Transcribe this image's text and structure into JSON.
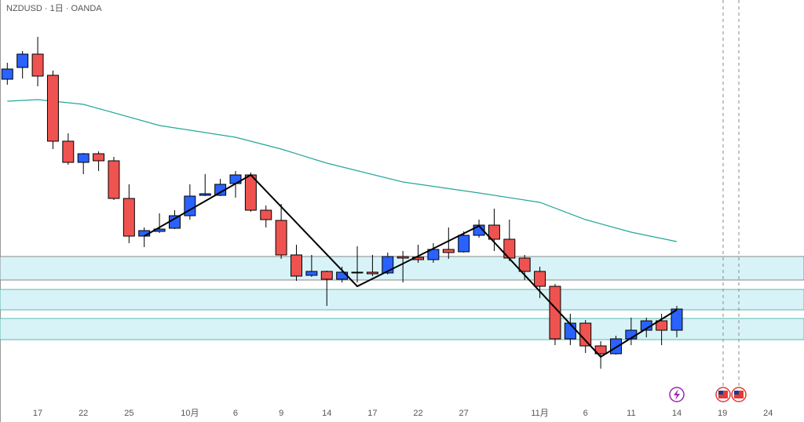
{
  "chart_data": {
    "type": "candlestick",
    "title": "NZDUSD · 1日 · OANDA",
    "up_color": "#2962ff",
    "down_color": "#ef5350",
    "open": [
      0.6339,
      0.6354,
      0.6371,
      0.6344,
      0.626,
      0.6233,
      0.6244,
      0.6235,
      0.6187,
      0.6139,
      0.6145,
      0.6149,
      0.6165,
      0.6191,
      0.6191,
      0.6206,
      0.6217,
      0.6172,
      0.6159,
      0.6115,
      0.6089,
      0.6094,
      0.6084,
      0.6093,
      0.6093,
      0.6092,
      0.6113,
      0.6112,
      0.6109,
      0.6122,
      0.6119,
      0.614,
      0.6153,
      0.6135,
      0.6111,
      0.6094,
      0.6075,
      0.6008,
      0.6028,
      0.5999,
      0.5989,
      0.6008,
      0.6019,
      0.6031,
      0.6019
    ],
    "high": [
      0.636,
      0.6375,
      0.6393,
      0.635,
      0.627,
      0.6245,
      0.6247,
      0.624,
      0.6205,
      0.615,
      0.6168,
      0.6172,
      0.6205,
      0.6218,
      0.6212,
      0.6222,
      0.622,
      0.6178,
      0.618,
      0.6128,
      0.6115,
      0.6095,
      0.61,
      0.6126,
      0.6115,
      0.6118,
      0.612,
      0.6128,
      0.613,
      0.615,
      0.6145,
      0.616,
      0.6174,
      0.616,
      0.6115,
      0.61,
      0.6078,
      0.604,
      0.6032,
      0.6005,
      0.6012,
      0.6035,
      0.6035,
      0.604,
      0.605
    ],
    "low": [
      0.6332,
      0.634,
      0.633,
      0.625,
      0.623,
      0.6218,
      0.6222,
      0.6185,
      0.613,
      0.6125,
      0.6143,
      0.6148,
      0.616,
      0.619,
      0.619,
      0.6188,
      0.617,
      0.615,
      0.611,
      0.6082,
      0.6087,
      0.605,
      0.608,
      0.608,
      0.6088,
      0.609,
      0.608,
      0.6105,
      0.6105,
      0.611,
      0.6118,
      0.6137,
      0.612,
      0.6107,
      0.6083,
      0.606,
      0.6,
      0.6,
      0.599,
      0.597,
      0.5988,
      0.6,
      0.601,
      0.6,
      0.601
    ],
    "close": [
      0.6352,
      0.6371,
      0.6343,
      0.626,
      0.6233,
      0.6244,
      0.6235,
      0.6187,
      0.6139,
      0.6146,
      0.6148,
      0.6165,
      0.619,
      0.6193,
      0.6205,
      0.6217,
      0.6172,
      0.616,
      0.6115,
      0.6088,
      0.6094,
      0.6084,
      0.6093,
      0.6092,
      0.6091,
      0.6113,
      0.6111,
      0.6109,
      0.6122,
      0.6118,
      0.614,
      0.6153,
      0.6135,
      0.6111,
      0.6094,
      0.6075,
      0.6008,
      0.6028,
      0.5999,
      0.5989,
      0.6008,
      0.6019,
      0.6031,
      0.6019,
      0.6046
    ],
    "ma": {
      "color": "#26a69a",
      "x": [
        0,
        2,
        5,
        10,
        15,
        18,
        21,
        26,
        31,
        35,
        38,
        41,
        44
      ],
      "values": [
        0.6311,
        0.6313,
        0.6307,
        0.628,
        0.6265,
        0.625,
        0.6232,
        0.6208,
        0.6194,
        0.6182,
        0.616,
        0.6144,
        0.6132
      ]
    },
    "zigzag": {
      "color": "#000000",
      "x": [
        9,
        16,
        23,
        31,
        39,
        44
      ],
      "values": [
        0.6139,
        0.6217,
        0.6075,
        0.6152,
        0.5985,
        0.6045
      ]
    },
    "zones": [
      [
        0.6113,
        0.6083
      ],
      [
        0.6071,
        0.6045
      ],
      [
        0.6034,
        0.6007
      ]
    ],
    "xlim": [
      -0.48,
      52.36
    ],
    "ylim": [
      0.592,
      0.644
    ],
    "xticks": [
      {
        "value": 2,
        "label": "17"
      },
      {
        "value": 5,
        "label": "22"
      },
      {
        "value": 8,
        "label": "25"
      },
      {
        "value": 12,
        "label": "10月"
      },
      {
        "value": 15,
        "label": "6"
      },
      {
        "value": 18,
        "label": "9"
      },
      {
        "value": 21,
        "label": "14"
      },
      {
        "value": 24,
        "label": "17"
      },
      {
        "value": 27,
        "label": "22"
      },
      {
        "value": 30,
        "label": "27"
      },
      {
        "value": 35,
        "label": "11月"
      },
      {
        "value": 38,
        "label": "6"
      },
      {
        "value": 41,
        "label": "11"
      },
      {
        "value": 44,
        "label": "14"
      },
      {
        "value": 47,
        "label": "19"
      },
      {
        "value": 50,
        "label": "24"
      }
    ]
  }
}
